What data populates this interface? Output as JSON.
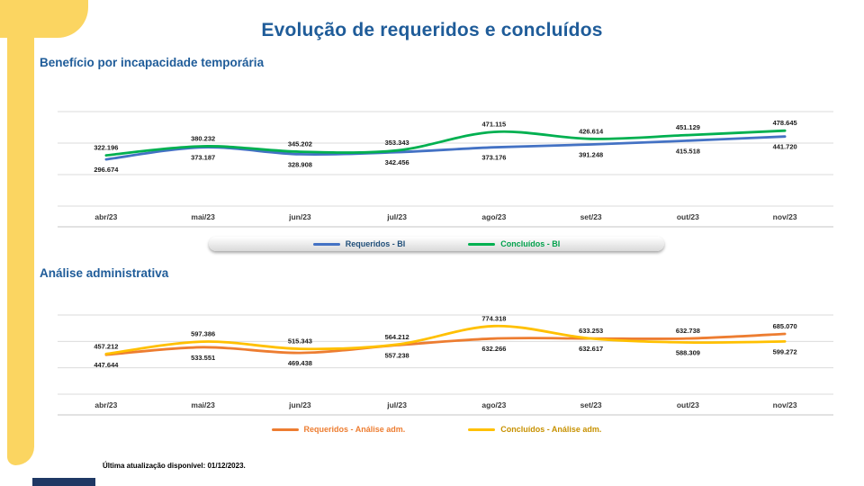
{
  "page": {
    "title": "Evolução de requeridos e concluídos",
    "footer_note": "Última atualização disponível:  01/12/2023.",
    "colors": {
      "title_blue": "#1F5C99",
      "accent_yellow": "#FBD561",
      "navy": "#1F3864"
    }
  },
  "chart_data": [
    {
      "type": "line",
      "title": "Benefício por incapacidade temporária",
      "categories": [
        "abr/23",
        "mai/23",
        "jun/23",
        "jul/23",
        "ago/23",
        "set/23",
        "out/23",
        "nov/23"
      ],
      "ylim": [
        0,
        600000
      ],
      "grid": true,
      "legend_position": "bottom",
      "legend_panel": true,
      "series": [
        {
          "name": "Requeridos - BI",
          "color": "#4472C4",
          "label_color": "#1F4E79",
          "values": [
            296674,
            373187,
            328908,
            342456,
            373176,
            391248,
            415518,
            441720
          ],
          "labels": [
            "296.674",
            "373.187",
            "328.908",
            "342.456",
            "373.176",
            "391.248",
            "415.518",
            "441.720"
          ]
        },
        {
          "name": "Concluídos - BI",
          "color": "#00B050",
          "label_color": "#00A14B",
          "values": [
            322196,
            380232,
            345202,
            353343,
            471115,
            426614,
            451129,
            478645
          ],
          "labels": [
            "322.196",
            "380.232",
            "345.202",
            "353.343",
            "471.115",
            "426.614",
            "451.129",
            "478.645"
          ]
        }
      ]
    },
    {
      "type": "line",
      "title": "Análise administrativa",
      "categories": [
        "abr/23",
        "mai/23",
        "jun/23",
        "jul/23",
        "ago/23",
        "set/23",
        "out/23",
        "nov/23"
      ],
      "ylim": [
        0,
        900000
      ],
      "grid": true,
      "legend_position": "bottom",
      "legend_panel": false,
      "series": [
        {
          "name": "Requeridos - Análise adm.",
          "color": "#ED7D31",
          "label_color": "#ED7D31",
          "values": [
            447644,
            533551,
            469438,
            557238,
            632266,
            633253,
            632738,
            685070
          ],
          "labels": [
            "447.644",
            "533.551",
            "469.438",
            "557.238",
            "632.266",
            "633.253",
            "632.738",
            "685.070"
          ]
        },
        {
          "name": "Concluídos - Análise adm.",
          "color": "#FFC000",
          "label_color": "#C79100",
          "values": [
            457212,
            597386,
            515343,
            564212,
            774318,
            632617,
            588309,
            599272
          ],
          "labels": [
            "457.212",
            "597.386",
            "515.343",
            "564.212",
            "774.318",
            "632.617",
            "588.309",
            "599.272"
          ]
        }
      ]
    }
  ]
}
